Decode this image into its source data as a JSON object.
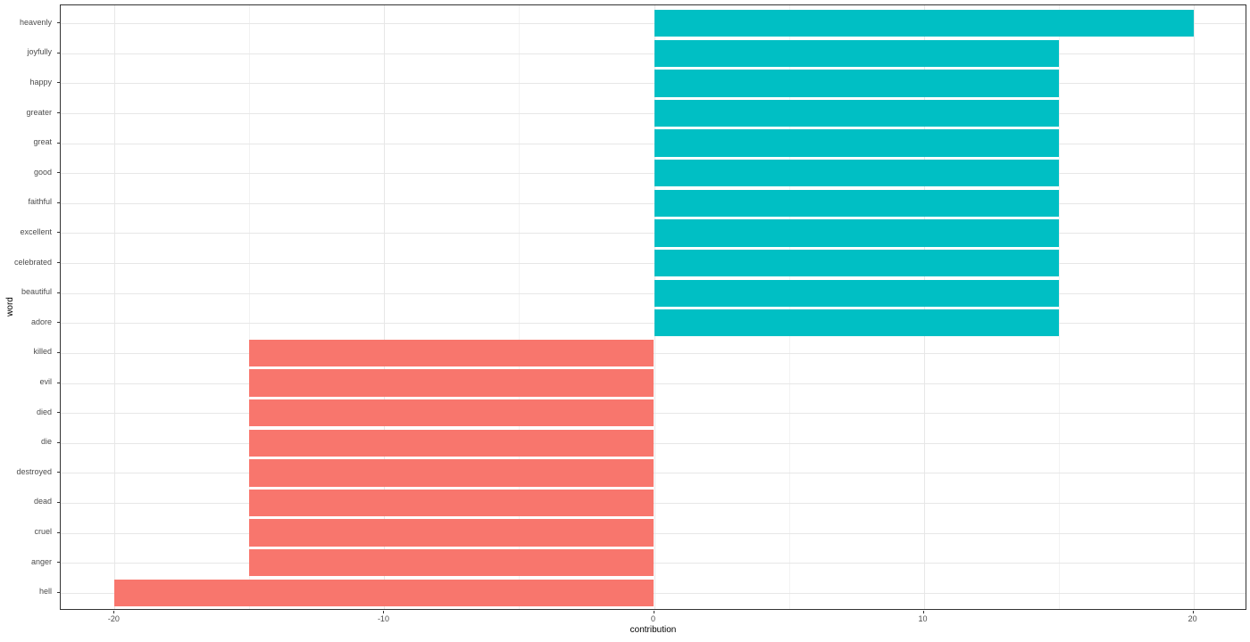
{
  "chart_data": {
    "type": "bar",
    "orientation": "horizontal",
    "title": "",
    "xlabel": "contribution",
    "ylabel": "word",
    "categories": [
      "heavenly",
      "joyfully",
      "happy",
      "greater",
      "great",
      "good",
      "faithful",
      "excellent",
      "celebrated",
      "beautiful",
      "adore",
      "killed",
      "evil",
      "died",
      "die",
      "destroyed",
      "dead",
      "cruel",
      "anger",
      "hell"
    ],
    "values": [
      20,
      15,
      15,
      15,
      15,
      15,
      15,
      15,
      15,
      15,
      15,
      -15,
      -15,
      -15,
      -15,
      -15,
      -15,
      -15,
      -15,
      -20
    ],
    "positive_color": "#00BFC4",
    "negative_color": "#F8766D",
    "xlim": [
      -22,
      22
    ],
    "x_major_ticks": [
      -20,
      -10,
      0,
      10,
      20
    ],
    "x_tick_labels": [
      "-20",
      "-10",
      "0",
      "10",
      "20"
    ],
    "x_minor_ticks": [
      -15,
      -5,
      5,
      15
    ],
    "bar_width_fraction": 0.9,
    "grid": true,
    "legend": "none"
  },
  "theme": {
    "background": "#FFFFFF",
    "panel_border": "#333333",
    "grid_major": "#E7E7E7",
    "grid_minor": "#F2F2F2",
    "tick_color": "#333333",
    "tick_label_color": "#4D4D4D",
    "axis_title_color": "#000000"
  }
}
